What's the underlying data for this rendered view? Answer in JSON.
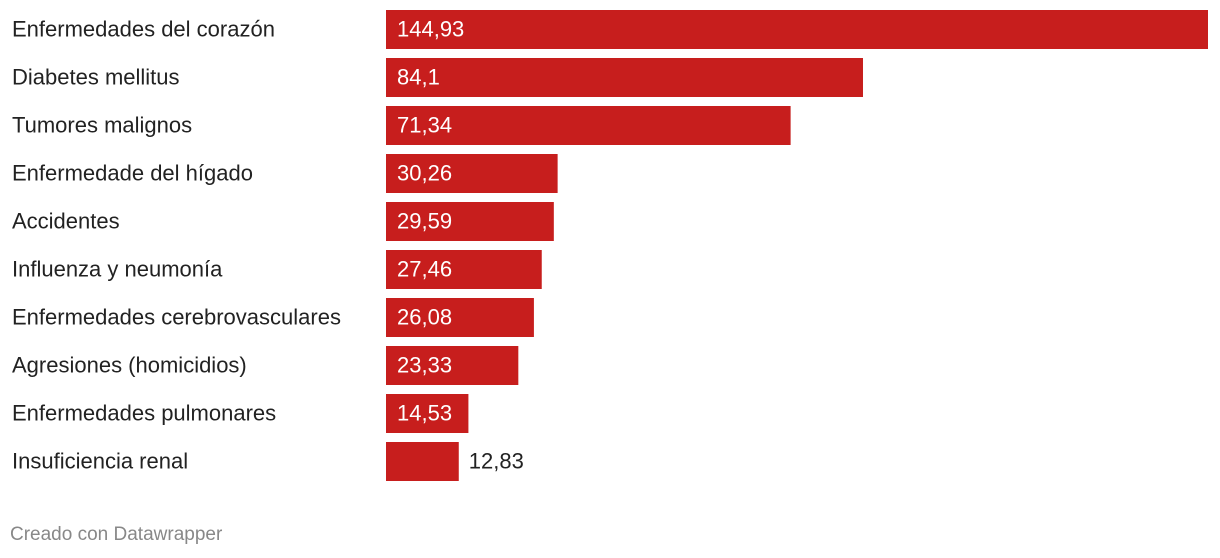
{
  "chart_data": {
    "type": "bar",
    "orientation": "horizontal",
    "categories": [
      "Enfermedades del corazón",
      "Diabetes mellitus",
      "Tumores malignos",
      "Enfermedade del hígado",
      "Accidentes",
      "Influenza y neumonía",
      "Enfermedades cerebrovasculares",
      "Agresiones (homicidios)",
      "Enfermedades pulmonares",
      "Insuficiencia renal"
    ],
    "values": [
      144.93,
      84.1,
      71.34,
      30.26,
      29.59,
      27.46,
      26.08,
      23.33,
      14.53,
      12.83
    ],
    "value_labels": [
      "144,93",
      "84,1",
      "71,34",
      "30,26",
      "29,59",
      "27,46",
      "26,08",
      "23,33",
      "14,53",
      "12,83"
    ],
    "color": "#c71e1d",
    "note": "Creado con Datawrapper"
  }
}
